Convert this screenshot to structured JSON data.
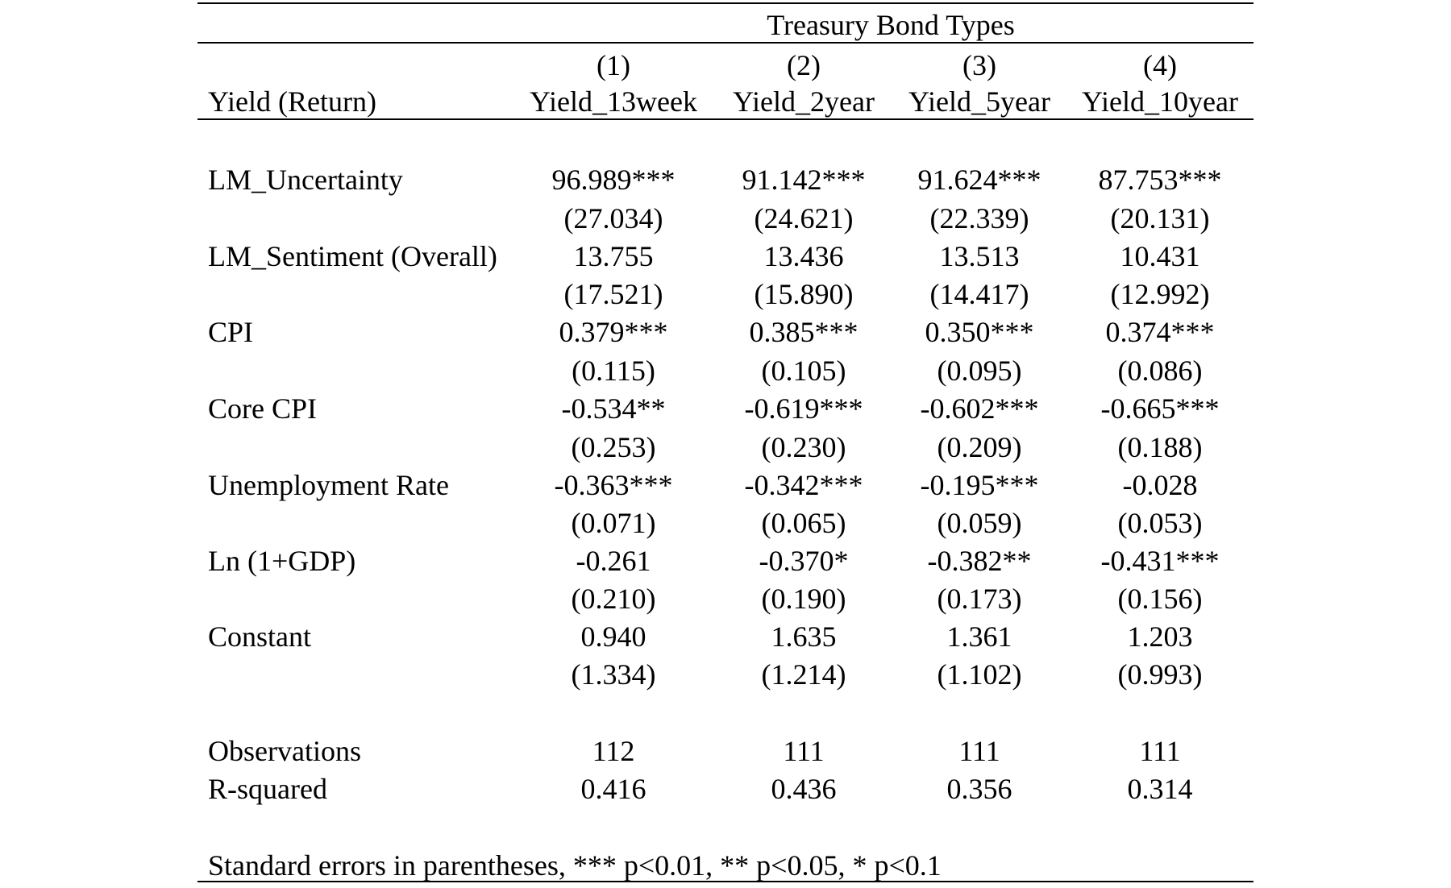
{
  "table": {
    "spanner": "Treasury Bond Types",
    "stub_header": "Yield (Return)",
    "column_numbers": [
      "(1)",
      "(2)",
      "(3)",
      "(4)"
    ],
    "column_names": [
      "Yield_13week",
      "Yield_2year",
      "Yield_5year",
      "Yield_10year"
    ],
    "rows": [
      {
        "label": "LM_Uncertainty",
        "coef": [
          "96.989***",
          "91.142***",
          "91.624***",
          "87.753***"
        ],
        "se": [
          "(27.034)",
          "(24.621)",
          "(22.339)",
          "(20.131)"
        ]
      },
      {
        "label": "LM_Sentiment (Overall)",
        "coef": [
          "13.755",
          "13.436",
          "13.513",
          "10.431"
        ],
        "se": [
          "(17.521)",
          "(15.890)",
          "(14.417)",
          "(12.992)"
        ]
      },
      {
        "label": "CPI",
        "coef": [
          "0.379***",
          "0.385***",
          "0.350***",
          "0.374***"
        ],
        "se": [
          "(0.115)",
          "(0.105)",
          "(0.095)",
          "(0.086)"
        ]
      },
      {
        "label": "Core CPI",
        "coef": [
          "-0.534**",
          "-0.619***",
          "-0.602***",
          "-0.665***"
        ],
        "se": [
          "(0.253)",
          "(0.230)",
          "(0.209)",
          "(0.188)"
        ]
      },
      {
        "label": "Unemployment Rate",
        "coef": [
          "-0.363***",
          "-0.342***",
          "-0.195***",
          "-0.028"
        ],
        "se": [
          "(0.071)",
          "(0.065)",
          "(0.059)",
          "(0.053)"
        ]
      },
      {
        "label": "Ln (1+GDP)",
        "coef": [
          "-0.261",
          "-0.370*",
          "-0.382**",
          "-0.431***"
        ],
        "se": [
          "(0.210)",
          "(0.190)",
          "(0.173)",
          "(0.156)"
        ]
      },
      {
        "label": "Constant",
        "coef": [
          "0.940",
          "1.635",
          "1.361",
          "1.203"
        ],
        "se": [
          "(1.334)",
          "(1.214)",
          "(1.102)",
          "(0.993)"
        ]
      }
    ],
    "stats": [
      {
        "label": "Observations",
        "values": [
          "112",
          "111",
          "111",
          "111"
        ]
      },
      {
        "label": "R-squared",
        "values": [
          "0.416",
          "0.436",
          "0.356",
          "0.314"
        ]
      }
    ],
    "footnote": "Standard errors in parentheses, *** p<0.01, ** p<0.05, * p<0.1"
  }
}
